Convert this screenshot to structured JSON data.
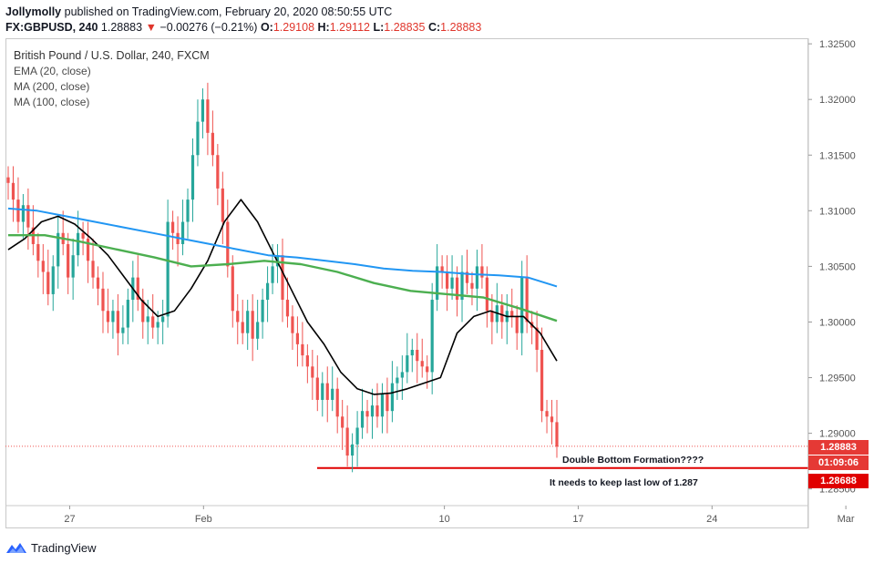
{
  "header": {
    "author": "Jollymolly",
    "published_text": "published on TradingView.com, February 20, 2020 08:50:55 UTC",
    "symbol": "FX:GBPUSD, 240",
    "last": "1.28883",
    "change_arrow": "▼",
    "change": "−0.00276 (−0.21%)",
    "o_label": "O:",
    "o_value": "1.29108",
    "h_label": "H:",
    "h_value": "1.29112",
    "l_label": "L:",
    "l_value": "1.28835",
    "c_label": "C:",
    "c_value": "1.28883"
  },
  "legend": {
    "title": "British Pound / U.S. Dollar, 240, FXCM",
    "ema": "EMA (20, close)",
    "ma200": "MA (200, close)",
    "ma100": "MA (100, close)"
  },
  "price_tags": {
    "last_price": "1.28883",
    "countdown": "01:09:06",
    "support": "1.28688"
  },
  "annotations": {
    "double_bottom": "Double Bottom Formation????",
    "keep_low": "It needs to keep last low of 1.287"
  },
  "footer": {
    "brand": "TradingView"
  },
  "colors": {
    "up": "#26a69a",
    "down": "#ef5350",
    "ema": "#000000",
    "ma200": "#2196f3",
    "ma100": "#4caf50",
    "support": "#e00000",
    "tag_red": "#e53935",
    "tag_dark": "#a01212"
  },
  "chart_data": {
    "type": "candlestick",
    "title": "British Pound / U.S. Dollar, 240, FXCM",
    "ylim": [
      1.2835,
      1.3255
    ],
    "y_ticks": [
      "1.28500",
      "1.29000",
      "1.29500",
      "1.30000",
      "1.30500",
      "1.31000",
      "1.31500",
      "1.32000",
      "1.32500"
    ],
    "x_ticks": [
      {
        "label": "27",
        "day": 0
      },
      {
        "label": "Feb",
        "day": 5
      },
      {
        "label": "10",
        "day": 14
      },
      {
        "label": "17",
        "day": 19
      },
      {
        "label": "24",
        "day": 24
      },
      {
        "label": "Mar",
        "day": 29
      }
    ],
    "xlim_days": [
      -2.4,
      27.6
    ],
    "support_level": 1.28688,
    "closes": [
      1.3125,
      1.311,
      1.309,
      1.3105,
      1.3085,
      1.307,
      1.3055,
      1.3045,
      1.3025,
      1.305,
      1.308,
      1.307,
      1.304,
      1.306,
      1.308,
      1.3075,
      1.3055,
      1.304,
      1.303,
      1.301,
      1.3,
      1.301,
      1.299,
      1.2995,
      1.302,
      1.304,
      1.302,
      1.3,
      1.3005,
      1.2995,
      1.3,
      1.3005,
      1.309,
      1.308,
      1.307,
      1.309,
      1.311,
      1.315,
      1.318,
      1.32,
      1.317,
      1.315,
      1.312,
      1.309,
      1.305,
      1.301,
      1.3,
      1.299,
      1.301,
      1.2985,
      1.3,
      1.302,
      1.3035,
      1.305,
      1.306,
      1.302,
      1.3005,
      1.299,
      1.298,
      1.297,
      1.296,
      1.295,
      1.293,
      1.2945,
      1.293,
      1.294,
      1.2915,
      1.2905,
      1.288,
      1.289,
      1.2905,
      1.292,
      1.2915,
      1.2925,
      1.2915,
      1.2935,
      1.292,
      1.2945,
      1.295,
      1.2955,
      1.297,
      1.2975,
      1.2965,
      1.296,
      1.2955,
      1.302,
      1.305,
      1.3045,
      1.303,
      1.304,
      1.302,
      1.3045,
      1.3035,
      1.303,
      1.305,
      1.304,
      1.301,
      1.3,
      1.3015,
      1.3,
      1.301,
      1.3005,
      1.299,
      1.304,
      1.3,
      1.2995,
      1.2975,
      1.292,
      1.2915,
      1.291,
      1.2888
    ],
    "series": [
      {
        "name": "EMA (20, close)",
        "values": [
          1.3065,
          1.3075,
          1.309,
          1.3095,
          1.3088,
          1.3075,
          1.306,
          1.304,
          1.302,
          1.3005,
          1.301,
          1.303,
          1.3055,
          1.309,
          1.311,
          1.309,
          1.306,
          1.303,
          1.3,
          1.298,
          1.2955,
          1.294,
          1.2935,
          1.2936,
          1.294,
          1.2945,
          1.295,
          1.299,
          1.3005,
          1.301,
          1.3005,
          1.3005,
          1.299,
          1.2965
        ]
      },
      {
        "name": "MA (200, close)",
        "values": [
          1.3102,
          1.31,
          1.3095,
          1.309,
          1.3085,
          1.308,
          1.3075,
          1.307,
          1.3065,
          1.306,
          1.3058,
          1.3055,
          1.3052,
          1.3048,
          1.3046,
          1.3045,
          1.3043,
          1.3042,
          1.304,
          1.3032
        ]
      },
      {
        "name": "MA (100, close)",
        "values": [
          1.3078,
          1.3078,
          1.3072,
          1.3065,
          1.3058,
          1.305,
          1.3052,
          1.3055,
          1.3052,
          1.3045,
          1.3035,
          1.3028,
          1.3025,
          1.3022,
          1.3012,
          1.3001
        ]
      }
    ]
  }
}
